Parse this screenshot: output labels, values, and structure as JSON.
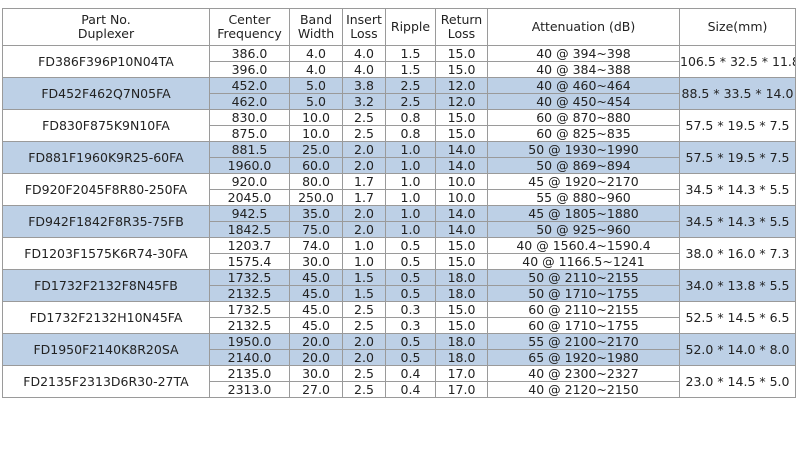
{
  "headers": [
    {
      "lines": [
        "Part No.",
        "Duplexer"
      ]
    },
    {
      "lines": [
        "Center",
        "Frequency"
      ]
    },
    {
      "lines": [
        "Band",
        "Width"
      ]
    },
    {
      "lines": [
        "Insert",
        "Loss"
      ]
    },
    {
      "lines": [
        "Ripple"
      ]
    },
    {
      "lines": [
        "Return",
        "Loss"
      ]
    },
    {
      "lines": [
        "Attenuation (dB)"
      ]
    },
    {
      "lines": [
        "Size(mm)"
      ]
    }
  ],
  "products": [
    {
      "part": "FD386F396P10N04TA",
      "size": "106.5 * 32.5 * 11.8",
      "shaded": false,
      "rows": [
        {
          "freq": "386.0",
          "bw": "4.0",
          "il": "4.0",
          "ripple": "1.5",
          "rl": "15.0",
          "att": "40 @ 394~398"
        },
        {
          "freq": "396.0",
          "bw": "4.0",
          "il": "4.0",
          "ripple": "1.5",
          "rl": "15.0",
          "att": "40 @ 384~388"
        }
      ]
    },
    {
      "part": "FD452F462Q7N05FA",
      "size": "88.5 * 33.5 * 14.0",
      "shaded": true,
      "rows": [
        {
          "freq": "452.0",
          "bw": "5.0",
          "il": "3.8",
          "ripple": "2.5",
          "rl": "12.0",
          "att": "40 @ 460~464"
        },
        {
          "freq": "462.0",
          "bw": "5.0",
          "il": "3.2",
          "ripple": "2.5",
          "rl": "12.0",
          "att": "40 @ 450~454"
        }
      ]
    },
    {
      "part": "FD830F875K9N10FA",
      "size": "57.5 * 19.5 * 7.5",
      "shaded": false,
      "rows": [
        {
          "freq": "830.0",
          "bw": "10.0",
          "il": "2.5",
          "ripple": "0.8",
          "rl": "15.0",
          "att": "60 @ 870~880"
        },
        {
          "freq": "875.0",
          "bw": "10.0",
          "il": "2.5",
          "ripple": "0.8",
          "rl": "15.0",
          "att": "60 @ 825~835"
        }
      ]
    },
    {
      "part": "FD881F1960K9R25-60FA",
      "size": "57.5 * 19.5 * 7.5",
      "shaded": true,
      "rows": [
        {
          "freq": "881.5",
          "bw": "25.0",
          "il": "2.0",
          "ripple": "1.0",
          "rl": "14.0",
          "att": "50 @ 1930~1990"
        },
        {
          "freq": "1960.0",
          "bw": "60.0",
          "il": "2.0",
          "ripple": "1.0",
          "rl": "14.0",
          "att": "50 @ 869~894"
        }
      ]
    },
    {
      "part": "FD920F2045F8R80-250FA",
      "size": "34.5 * 14.3 * 5.5",
      "shaded": false,
      "rows": [
        {
          "freq": "920.0",
          "bw": "80.0",
          "il": "1.7",
          "ripple": "1.0",
          "rl": "10.0",
          "att": "45 @ 1920~2170"
        },
        {
          "freq": "2045.0",
          "bw": "250.0",
          "il": "1.7",
          "ripple": "1.0",
          "rl": "10.0",
          "att": "55 @ 880~960"
        }
      ]
    },
    {
      "part": "FD942F1842F8R35-75FB",
      "size": "34.5 * 14.3 * 5.5",
      "shaded": true,
      "rows": [
        {
          "freq": "942.5",
          "bw": "35.0",
          "il": "2.0",
          "ripple": "1.0",
          "rl": "14.0",
          "att": "45 @ 1805~1880"
        },
        {
          "freq": "1842.5",
          "bw": "75.0",
          "il": "2.0",
          "ripple": "1.0",
          "rl": "14.0",
          "att": "50 @ 925~960"
        }
      ]
    },
    {
      "part": "FD1203F1575K6R74-30FA",
      "size": "38.0 * 16.0 * 7.3",
      "shaded": false,
      "rows": [
        {
          "freq": "1203.7",
          "bw": "74.0",
          "il": "1.0",
          "ripple": "0.5",
          "rl": "15.0",
          "att": "40 @ 1560.4~1590.4"
        },
        {
          "freq": "1575.4",
          "bw": "30.0",
          "il": "1.0",
          "ripple": "0.5",
          "rl": "15.0",
          "att": "40 @ 1166.5~1241"
        }
      ]
    },
    {
      "part": "FD1732F2132F8N45FB",
      "size": "34.0 * 13.8 * 5.5",
      "shaded": true,
      "rows": [
        {
          "freq": "1732.5",
          "bw": "45.0",
          "il": "1.5",
          "ripple": "0.5",
          "rl": "18.0",
          "att": "50 @ 2110~2155"
        },
        {
          "freq": "2132.5",
          "bw": "45.0",
          "il": "1.5",
          "ripple": "0.5",
          "rl": "18.0",
          "att": "50 @ 1710~1755"
        }
      ]
    },
    {
      "part": "FD1732F2132H10N45FA",
      "size": "52.5 * 14.5 * 6.5",
      "shaded": false,
      "rows": [
        {
          "freq": "1732.5",
          "bw": "45.0",
          "il": "2.5",
          "ripple": "0.3",
          "rl": "15.0",
          "att": "60 @ 2110~2155"
        },
        {
          "freq": "2132.5",
          "bw": "45.0",
          "il": "2.5",
          "ripple": "0.3",
          "rl": "15.0",
          "att": "60 @ 1710~1755"
        }
      ]
    },
    {
      "part": "FD1950F2140K8R20SA",
      "size": "52.0 * 14.0 * 8.0",
      "shaded": true,
      "rows": [
        {
          "freq": "1950.0",
          "bw": "20.0",
          "il": "2.0",
          "ripple": "0.5",
          "rl": "18.0",
          "att": "55 @ 2100~2170"
        },
        {
          "freq": "2140.0",
          "bw": "20.0",
          "il": "2.0",
          "ripple": "0.5",
          "rl": "18.0",
          "att": "65 @ 1920~1980"
        }
      ]
    },
    {
      "part": "FD2135F2313D6R30-27TA",
      "size": "23.0 * 14.5 * 5.0",
      "shaded": false,
      "rows": [
        {
          "freq": "2135.0",
          "bw": "30.0",
          "il": "2.5",
          "ripple": "0.4",
          "rl": "17.0",
          "att": "40 @  2300~2327"
        },
        {
          "freq": "2313.0",
          "bw": "27.0",
          "il": "2.5",
          "ripple": "0.4",
          "rl": "17.0",
          "att": "40 @  2120~2150"
        }
      ]
    }
  ]
}
